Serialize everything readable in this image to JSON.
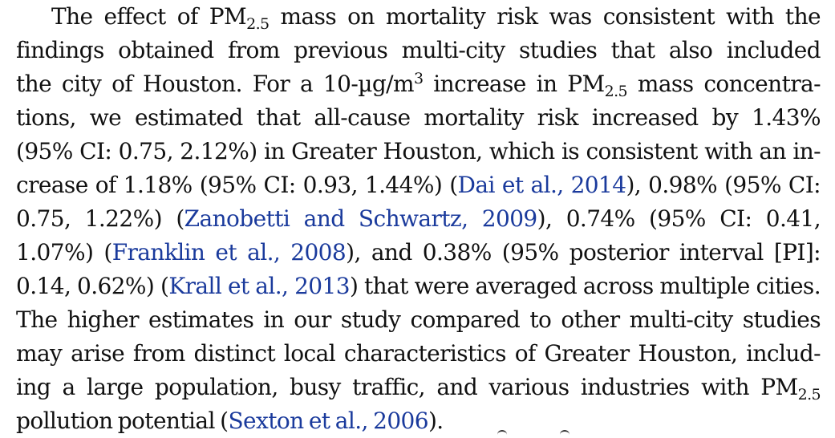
{
  "paragraph": {
    "lines": [
      {
        "indent": true,
        "parts": [
          {
            "t": "The effect of PM"
          },
          {
            "t": "2.5",
            "s": "sub"
          },
          {
            "t": " mass on mortality risk was consistent with the"
          }
        ]
      },
      {
        "parts": [
          {
            "t": "findings obtained from previous multi-city studies that also included"
          }
        ]
      },
      {
        "parts": [
          {
            "t": "the city of Houston. For a 10-µg/m"
          },
          {
            "t": "3",
            "s": "sup"
          },
          {
            "t": " increase in PM"
          },
          {
            "t": "2.5",
            "s": "sub"
          },
          {
            "t": " mass concentra-"
          }
        ]
      },
      {
        "parts": [
          {
            "t": "tions, we estimated that all-cause mortality risk increased by 1.43%"
          }
        ]
      },
      {
        "parts": [
          {
            "t": "(95% CI: 0.75, 2.12%) in Greater Houston, which is consistent with an in-"
          }
        ]
      },
      {
        "parts": [
          {
            "t": "crease of 1.18% (95% CI: 0.93, 1.44%) ("
          },
          {
            "t": "Dai et al., 2014",
            "s": "ref"
          },
          {
            "t": "), 0.98% (95% CI:"
          }
        ]
      },
      {
        "parts": [
          {
            "t": "0.75, 1.22%) ("
          },
          {
            "t": "Zanobetti and Schwartz, 2009",
            "s": "ref"
          },
          {
            "t": "), 0.74% (95% CI: 0.41,"
          }
        ]
      },
      {
        "parts": [
          {
            "t": "1.07%) ("
          },
          {
            "t": "Franklin et al., 2008",
            "s": "ref"
          },
          {
            "t": "), and 0.38% (95% posterior interval [PI]:"
          }
        ]
      },
      {
        "parts": [
          {
            "t": "0.14, 0.62%) ("
          },
          {
            "t": "Krall et al., 2013",
            "s": "ref"
          },
          {
            "t": ") that were averaged across multiple cities."
          }
        ]
      },
      {
        "parts": [
          {
            "t": "The higher estimates in our study compared to other multi-city studies"
          }
        ]
      },
      {
        "parts": [
          {
            "t": "may arise from distinct local characteristics of Greater Houston, includ-"
          }
        ]
      },
      {
        "parts": [
          {
            "t": "ing a large population, busy traffic, and various industries with PM"
          },
          {
            "t": "2.5",
            "s": "sub"
          }
        ]
      },
      {
        "last": true,
        "parts": [
          {
            "t": "pollution potential ("
          },
          {
            "t": "Sexton et al., 2006",
            "s": "ref"
          },
          {
            "t": ")."
          }
        ]
      }
    ]
  },
  "colors": {
    "text": "#111111",
    "link": "#1a3a9c",
    "background": "#ffffff"
  }
}
